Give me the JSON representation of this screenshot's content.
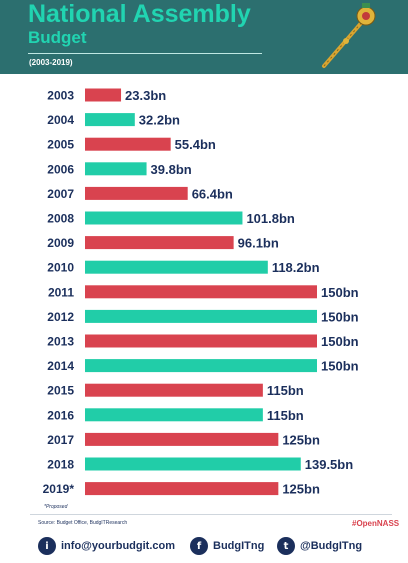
{
  "header": {
    "title": "National Assembly",
    "subtitle": "Budget",
    "period": "(2003-2019)"
  },
  "colors": {
    "header_bg": "#2c6f6f",
    "title": "#21d4b1",
    "bar_red": "#d9434f",
    "bar_green": "#21cda8",
    "label": "#1b2f5c"
  },
  "chart_data": {
    "type": "bar",
    "orientation": "horizontal",
    "categories": [
      "2003",
      "2004",
      "2005",
      "2006",
      "2007",
      "2008",
      "2009",
      "2010",
      "2011",
      "2012",
      "2013",
      "2014",
      "2015",
      "2016",
      "2017",
      "2018",
      "2019*"
    ],
    "values": [
      23.3,
      32.2,
      55.4,
      39.8,
      66.4,
      101.8,
      96.1,
      118.2,
      150,
      150,
      150,
      150,
      115,
      115,
      125,
      139.5,
      125
    ],
    "labels": [
      "23.3bn",
      "32.2bn",
      "55.4bn",
      "39.8bn",
      "66.4bn",
      "101.8bn",
      "96.1bn",
      "118.2bn",
      "150bn",
      "150bn",
      "150bn",
      "150bn",
      "115bn",
      "115bn",
      "125bn",
      "139.5bn",
      "125bn"
    ],
    "bar_colors": [
      "red",
      "green",
      "red",
      "green",
      "red",
      "green",
      "red",
      "green",
      "red",
      "green",
      "red",
      "green",
      "red",
      "green",
      "red",
      "green",
      "red"
    ],
    "unit": "bn",
    "xlim": [
      0,
      150
    ],
    "grid": false,
    "title": "National Assembly Budget"
  },
  "footer": {
    "proposed_note": "*Proposed",
    "source": "Source: Budget Office, BudgITResearch",
    "hashtag": "#OpenNASS",
    "contacts": [
      {
        "icon": "email-icon",
        "glyph": "i",
        "text": "info@yourbudgit.com"
      },
      {
        "icon": "facebook-icon",
        "glyph": "f",
        "text": "BudgITng"
      },
      {
        "icon": "twitter-icon",
        "glyph": "t",
        "text": "@BudgITng"
      }
    ]
  }
}
